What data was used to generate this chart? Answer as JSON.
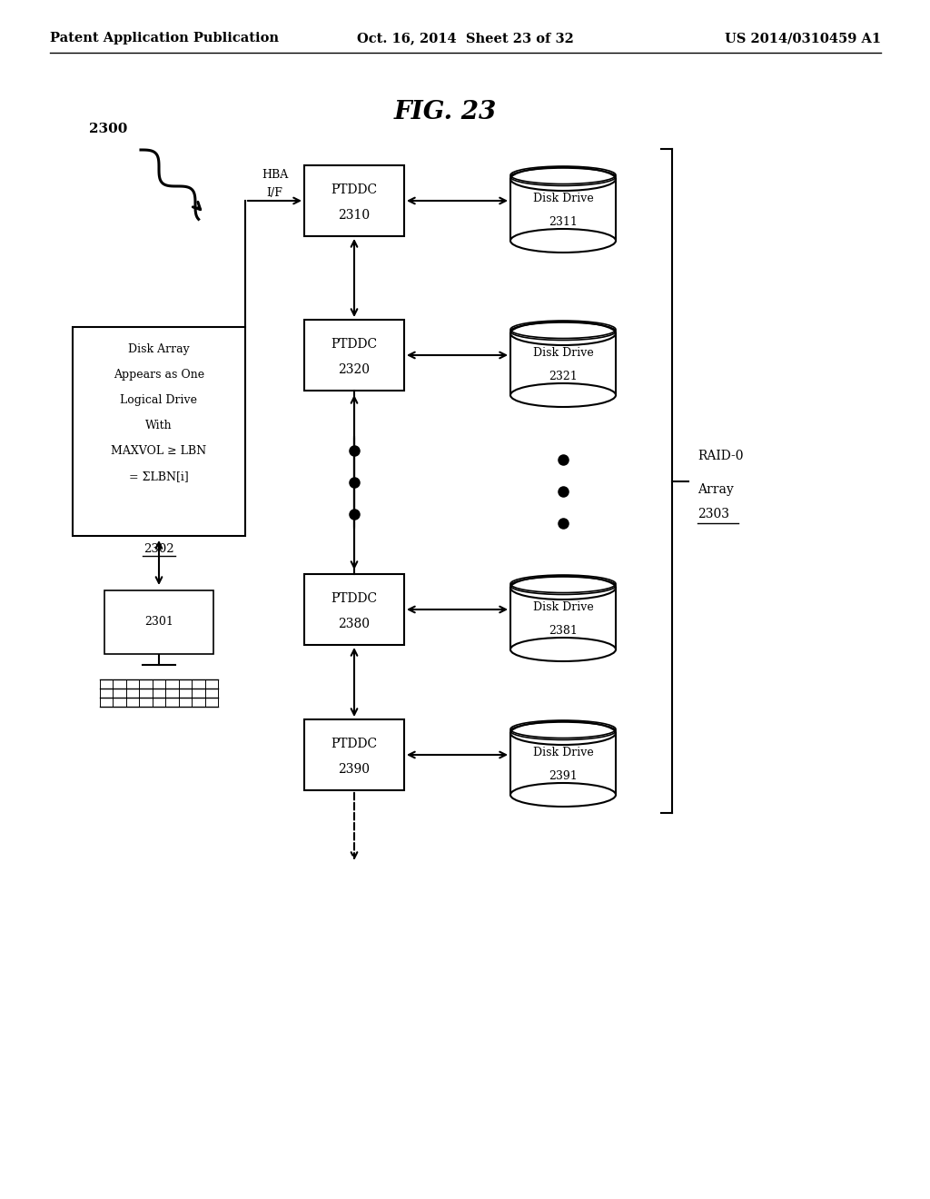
{
  "title": "FIG. 23",
  "header_left": "Patent Application Publication",
  "header_center": "Oct. 16, 2014  Sheet 23 of 32",
  "header_right": "US 2014/0310459 A1",
  "bg_color": "#ffffff",
  "box_text_lines": [
    "Disk Array",
    "Appears as One",
    "Logical Drive",
    "With",
    "MAXVOL ≥ LBN",
    "= ΣLBN[i]"
  ],
  "label_2300": "2300",
  "label_2301": "2301",
  "label_2302": "2302",
  "label_2303": "2303",
  "label_hba": "HBA\nI/F",
  "ptddc_labels": [
    "PTDDC",
    "PTDDC",
    "PTDDC",
    "PTDDC"
  ],
  "ptddc_nums": [
    "2310",
    "2320",
    "2380",
    "2390"
  ],
  "disk_labels": [
    "Disk Drive",
    "Disk Drive",
    "Disk Drive",
    "Disk Drive"
  ],
  "disk_nums": [
    "2311",
    "2321",
    "2381",
    "2391"
  ],
  "raid_label_lines": [
    "RAID-0",
    "Array",
    "2303"
  ]
}
